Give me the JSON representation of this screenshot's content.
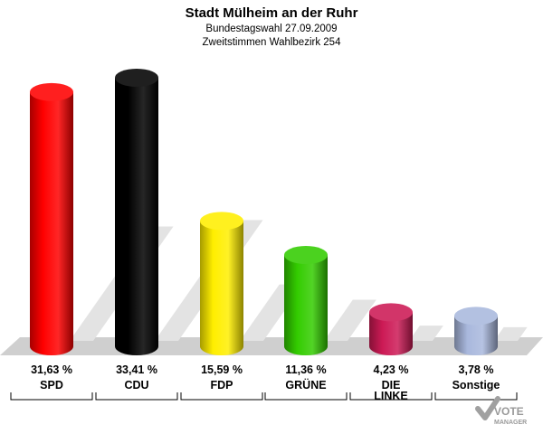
{
  "chart_data": {
    "type": "bar",
    "title": "Stadt Mülheim an der Ruhr",
    "subtitle_lines": [
      "Bundestagswahl 27.09.2009",
      "Zweitstimmen Wahlbezirk 254"
    ],
    "categories": [
      {
        "key": "spd",
        "lines": [
          "SPD"
        ]
      },
      {
        "key": "cdu",
        "lines": [
          "CDU"
        ]
      },
      {
        "key": "fdp",
        "lines": [
          "FDP"
        ]
      },
      {
        "key": "gruene",
        "lines": [
          "GRÜNE"
        ]
      },
      {
        "key": "linke",
        "lines": [
          "DIE",
          "LINKE"
        ]
      },
      {
        "key": "sonstige",
        "lines": [
          "Sonstige"
        ]
      }
    ],
    "values": [
      31.63,
      33.41,
      15.59,
      11.36,
      4.23,
      3.78
    ],
    "value_labels": [
      "31,63 %",
      "33,41 %",
      "15,59 %",
      "11,36 %",
      "4,23 %",
      "3,78 %"
    ],
    "colors": [
      "#ff0000",
      "#000000",
      "#ffee00",
      "#33cc00",
      "#cc1a55",
      "#a9b8dd"
    ],
    "ylim": [
      0,
      33.41
    ],
    "grid": false,
    "legend": "none"
  },
  "logo": {
    "line1": "VOTE",
    "line2": "MANAGER"
  }
}
